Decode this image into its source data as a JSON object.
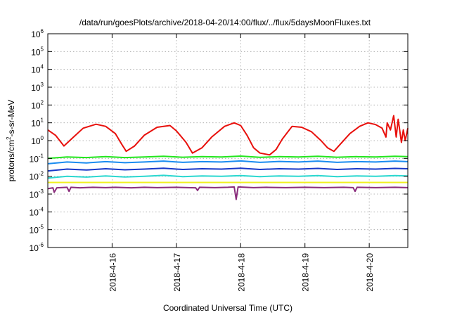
{
  "chart_data": {
    "type": "line",
    "title": "/data/run/goesPlots/archive/2018-04-20/14:00/flux/../flux/5daysMoonFluxes.txt",
    "xlabel": "Coordinated Universal Time (UTC)",
    "ylabel": {
      "base": "protons/cm",
      "sup": "2",
      "rest": "-s-sr-MeV"
    },
    "yscale": "log",
    "ylim_exp": [
      -6,
      6
    ],
    "y_ticks": [
      {
        "base": "10",
        "exp": "-6",
        "value": -6
      },
      {
        "base": "10",
        "exp": "-5",
        "value": -5
      },
      {
        "base": "10",
        "exp": "-4",
        "value": -4
      },
      {
        "base": "10",
        "exp": "-3",
        "value": -3
      },
      {
        "base": "10",
        "exp": "-2",
        "value": -2
      },
      {
        "base": "10",
        "exp": "-1",
        "value": -1
      },
      {
        "base": "10",
        "exp": "0",
        "value": 0
      },
      {
        "base": "10",
        "exp": "1",
        "value": 1
      },
      {
        "base": "10",
        "exp": "2",
        "value": 2
      },
      {
        "base": "10",
        "exp": "3",
        "value": 3
      },
      {
        "base": "10",
        "exp": "4",
        "value": 4
      },
      {
        "base": "10",
        "exp": "5",
        "value": 5
      },
      {
        "base": "10",
        "exp": "6",
        "value": 6
      }
    ],
    "xlim_days": [
      15.0,
      20.6
    ],
    "x_ticks": [
      {
        "label": "2018-4-16",
        "value": 16
      },
      {
        "label": "2018-4-17",
        "value": 17
      },
      {
        "label": "2018-4-18",
        "value": 18
      },
      {
        "label": "2018-4-19",
        "value": 19
      },
      {
        "label": "2018-4-20",
        "value": 20
      }
    ],
    "grid": true,
    "series": [
      {
        "color": "#e8100c",
        "points": [
          [
            15.0,
            0.6
          ],
          [
            15.12,
            0.3
          ],
          [
            15.25,
            -0.3
          ],
          [
            15.4,
            0.2
          ],
          [
            15.55,
            0.7
          ],
          [
            15.75,
            0.92
          ],
          [
            15.9,
            0.8
          ],
          [
            16.05,
            0.4
          ],
          [
            16.15,
            -0.2
          ],
          [
            16.22,
            -0.6
          ],
          [
            16.35,
            -0.3
          ],
          [
            16.5,
            0.3
          ],
          [
            16.7,
            0.75
          ],
          [
            16.9,
            0.85
          ],
          [
            17.0,
            0.55
          ],
          [
            17.15,
            -0.1
          ],
          [
            17.25,
            -0.7
          ],
          [
            17.4,
            -0.4
          ],
          [
            17.55,
            0.2
          ],
          [
            17.75,
            0.8
          ],
          [
            17.9,
            1.0
          ],
          [
            18.0,
            0.85
          ],
          [
            18.1,
            0.3
          ],
          [
            18.2,
            -0.4
          ],
          [
            18.3,
            -0.7
          ],
          [
            18.45,
            -0.8
          ],
          [
            18.55,
            -0.5
          ],
          [
            18.65,
            0.1
          ],
          [
            18.8,
            0.8
          ],
          [
            18.95,
            0.75
          ],
          [
            19.1,
            0.5
          ],
          [
            19.25,
            0.0
          ],
          [
            19.35,
            -0.4
          ],
          [
            19.45,
            -0.6
          ],
          [
            19.55,
            -0.2
          ],
          [
            19.7,
            0.4
          ],
          [
            19.85,
            0.8
          ],
          [
            19.98,
            1.0
          ],
          [
            20.1,
            0.9
          ],
          [
            20.2,
            0.7
          ],
          [
            20.26,
            0.2
          ],
          [
            20.28,
            1.0
          ],
          [
            20.33,
            0.6
          ],
          [
            20.38,
            1.4
          ],
          [
            20.42,
            0.2
          ],
          [
            20.45,
            1.2
          ],
          [
            20.5,
            -0.1
          ],
          [
            20.53,
            0.6
          ],
          [
            20.56,
            0.0
          ],
          [
            20.6,
            0.7
          ]
        ]
      },
      {
        "color": "#22e61c",
        "points": [
          [
            15.0,
            -1.0
          ],
          [
            15.3,
            -0.92
          ],
          [
            15.6,
            -0.95
          ],
          [
            15.9,
            -0.9
          ],
          [
            16.2,
            -0.95
          ],
          [
            16.5,
            -0.92
          ],
          [
            16.8,
            -0.88
          ],
          [
            17.1,
            -0.93
          ],
          [
            17.4,
            -0.9
          ],
          [
            17.7,
            -0.92
          ],
          [
            18.0,
            -0.87
          ],
          [
            18.3,
            -0.94
          ],
          [
            18.6,
            -0.9
          ],
          [
            18.9,
            -0.92
          ],
          [
            19.2,
            -0.88
          ],
          [
            19.5,
            -0.93
          ],
          [
            19.8,
            -0.9
          ],
          [
            20.1,
            -0.92
          ],
          [
            20.4,
            -0.88
          ],
          [
            20.6,
            -0.9
          ]
        ]
      },
      {
        "color": "#1a8cf0",
        "points": [
          [
            15.0,
            -1.3
          ],
          [
            15.3,
            -1.2
          ],
          [
            15.6,
            -1.25
          ],
          [
            15.9,
            -1.18
          ],
          [
            16.2,
            -1.24
          ],
          [
            16.5,
            -1.2
          ],
          [
            16.8,
            -1.15
          ],
          [
            17.1,
            -1.22
          ],
          [
            17.4,
            -1.18
          ],
          [
            17.7,
            -1.2
          ],
          [
            18.0,
            -1.14
          ],
          [
            18.3,
            -1.22
          ],
          [
            18.6,
            -1.17
          ],
          [
            18.9,
            -1.2
          ],
          [
            19.2,
            -1.15
          ],
          [
            19.5,
            -1.22
          ],
          [
            19.8,
            -1.18
          ],
          [
            20.1,
            -1.2
          ],
          [
            20.4,
            -1.15
          ],
          [
            20.6,
            -1.18
          ]
        ]
      },
      {
        "color": "#1838c8",
        "points": [
          [
            15.0,
            -1.7
          ],
          [
            15.3,
            -1.6
          ],
          [
            15.6,
            -1.65
          ],
          [
            15.9,
            -1.58
          ],
          [
            16.2,
            -1.64
          ],
          [
            16.5,
            -1.6
          ],
          [
            16.8,
            -1.55
          ],
          [
            17.1,
            -1.62
          ],
          [
            17.4,
            -1.58
          ],
          [
            17.7,
            -1.6
          ],
          [
            18.0,
            -1.55
          ],
          [
            18.3,
            -1.62
          ],
          [
            18.6,
            -1.58
          ],
          [
            18.9,
            -1.6
          ],
          [
            19.2,
            -1.56
          ],
          [
            19.5,
            -1.62
          ],
          [
            19.8,
            -1.58
          ],
          [
            20.1,
            -1.6
          ],
          [
            20.4,
            -1.56
          ],
          [
            20.6,
            -1.58
          ]
        ]
      },
      {
        "color": "#2ad8d0",
        "points": [
          [
            15.0,
            -2.1
          ],
          [
            15.3,
            -2.0
          ],
          [
            15.6,
            -2.05
          ],
          [
            15.9,
            -1.98
          ],
          [
            16.2,
            -2.04
          ],
          [
            16.5,
            -2.0
          ],
          [
            16.8,
            -1.95
          ],
          [
            17.1,
            -2.02
          ],
          [
            17.4,
            -1.98
          ],
          [
            17.7,
            -2.0
          ],
          [
            18.0,
            -1.96
          ],
          [
            18.3,
            -2.02
          ],
          [
            18.6,
            -1.98
          ],
          [
            18.9,
            -2.0
          ],
          [
            19.2,
            -1.96
          ],
          [
            19.5,
            -2.02
          ],
          [
            19.8,
            -1.98
          ],
          [
            20.1,
            -2.0
          ],
          [
            20.4,
            -1.96
          ],
          [
            20.6,
            -1.98
          ]
        ]
      },
      {
        "color": "#f0f020",
        "points": [
          [
            15.0,
            -2.35
          ],
          [
            15.5,
            -2.35
          ],
          [
            16.0,
            -2.35
          ],
          [
            16.5,
            -2.35
          ],
          [
            17.0,
            -2.35
          ],
          [
            17.5,
            -2.35
          ],
          [
            18.0,
            -2.35
          ],
          [
            18.5,
            -2.35
          ],
          [
            19.0,
            -2.35
          ],
          [
            19.5,
            -2.35
          ],
          [
            20.0,
            -2.35
          ],
          [
            20.6,
            -2.35
          ]
        ]
      },
      {
        "color": "#8a2c7c",
        "points": [
          [
            15.0,
            -2.7
          ],
          [
            15.08,
            -2.65
          ],
          [
            15.1,
            -2.9
          ],
          [
            15.14,
            -2.65
          ],
          [
            15.3,
            -2.62
          ],
          [
            15.33,
            -2.85
          ],
          [
            15.36,
            -2.62
          ],
          [
            15.5,
            -2.65
          ],
          [
            15.7,
            -2.62
          ],
          [
            15.9,
            -2.64
          ],
          [
            16.05,
            -2.62
          ],
          [
            16.3,
            -2.65
          ],
          [
            16.5,
            -2.62
          ],
          [
            16.7,
            -2.64
          ],
          [
            17.0,
            -2.62
          ],
          [
            17.3,
            -2.65
          ],
          [
            17.33,
            -2.8
          ],
          [
            17.36,
            -2.62
          ],
          [
            17.6,
            -2.64
          ],
          [
            17.8,
            -2.62
          ],
          [
            17.9,
            -2.6
          ],
          [
            17.93,
            -3.3
          ],
          [
            17.96,
            -2.6
          ],
          [
            18.2,
            -2.64
          ],
          [
            18.4,
            -2.62
          ],
          [
            18.7,
            -2.64
          ],
          [
            19.0,
            -2.62
          ],
          [
            19.3,
            -2.64
          ],
          [
            19.6,
            -2.62
          ],
          [
            19.75,
            -2.64
          ],
          [
            19.78,
            -2.85
          ],
          [
            19.81,
            -2.62
          ],
          [
            20.1,
            -2.64
          ],
          [
            20.4,
            -2.62
          ],
          [
            20.6,
            -2.64
          ]
        ]
      }
    ]
  }
}
